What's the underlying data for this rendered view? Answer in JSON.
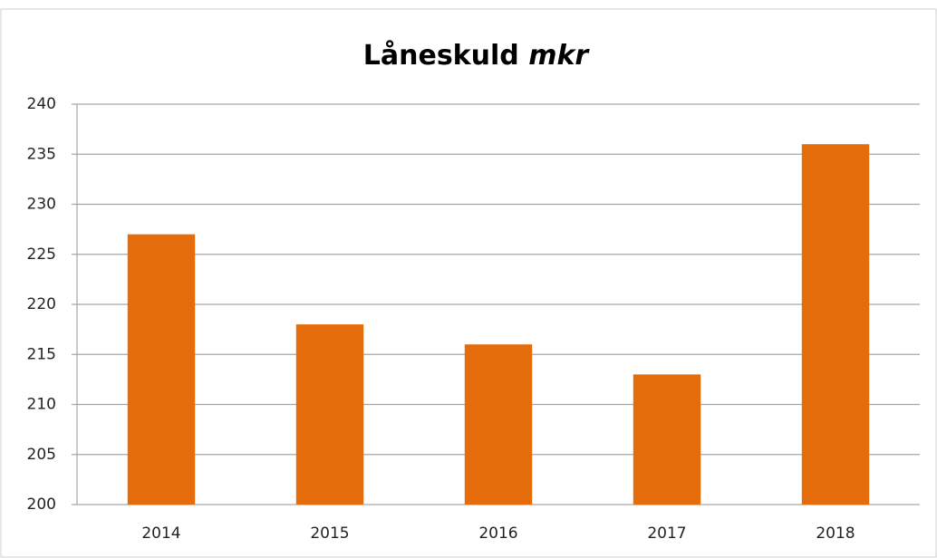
{
  "chart_data": {
    "type": "bar",
    "title": "Låneskuld",
    "title_italic": "mkr",
    "categories": [
      "2014",
      "2015",
      "2016",
      "2017",
      "2018"
    ],
    "values": [
      227,
      218,
      216,
      213,
      236
    ],
    "color": "#e46c0a",
    "ylim": [
      200,
      240
    ],
    "yticks": [
      200,
      205,
      210,
      215,
      220,
      225,
      230,
      235,
      240
    ],
    "grid": true
  }
}
